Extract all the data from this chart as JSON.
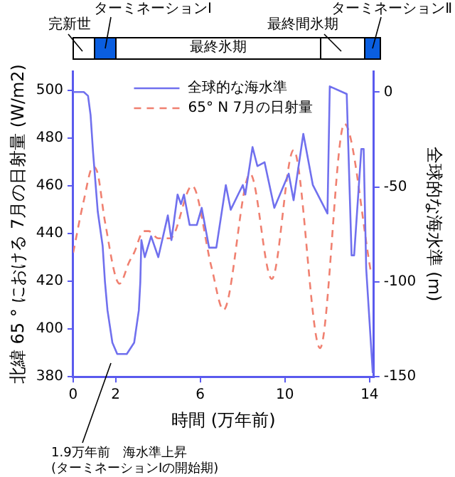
{
  "chart_data": {
    "type": "line",
    "xlabel": "時間 (万年前)",
    "ylabel": "北緯 65 ° における 7月の日射量 (W/m2)",
    "y2label": "全球的な海水準 (m)",
    "xlim": [
      0,
      14.2
    ],
    "xticks": [
      0,
      2,
      6,
      10,
      14
    ],
    "ylim": [
      380,
      508
    ],
    "yticks": [
      380,
      400,
      420,
      440,
      460,
      480,
      500
    ],
    "y2lim": [
      -150,
      11
    ],
    "y2ticks": [
      -150,
      -100,
      -50,
      0
    ],
    "legend": "top",
    "grid": false,
    "marker": "none",
    "series": [
      {
        "name": "全球的な海水準",
        "color": "#7070ee",
        "axis": "y2",
        "line_style": "solid",
        "x": [
          0,
          0.5,
          0.7,
          0.82,
          0.94,
          1.16,
          1.39,
          1.5,
          1.62,
          1.85,
          2.08,
          2.53,
          2.88,
          3.1,
          3.17,
          3.22,
          3.38,
          3.68,
          4.02,
          4.47,
          4.64,
          4.93,
          5.09,
          5.23,
          5.5,
          5.84,
          6.07,
          6.42,
          6.76,
          7.21,
          7.44,
          7.79,
          8.01,
          8.13,
          8.47,
          8.7,
          9.04,
          9.5,
          10.18,
          10.41,
          10.87,
          11.32,
          12.01,
          12.12,
          12.92,
          13.15,
          13.27,
          13.61,
          13.72,
          13.84,
          14.15
        ],
        "values": [
          0,
          0,
          -2,
          -12,
          -32,
          -63,
          -81,
          -100,
          -115,
          -132,
          -138,
          -138,
          -132,
          -115,
          -100,
          -78,
          -87,
          -76,
          -87,
          -65,
          -78,
          -54,
          -59,
          -54,
          -70,
          -70,
          -61,
          -82,
          -82,
          -49,
          -62,
          -54,
          -49,
          -54,
          -29,
          -39,
          -37,
          -61,
          -43,
          -57,
          -22,
          -49,
          -64,
          3,
          -1,
          -86,
          -86,
          -30,
          -30,
          -93,
          -148
        ]
      },
      {
        "name": "65° N 7月の日射量",
        "color": "#f08070",
        "line_style": "dashed",
        "x": [
          0,
          0.48,
          0.94,
          1.16,
          1.5,
          2.19,
          2.64,
          2.88,
          3.33,
          3.56,
          4.02,
          4.59,
          5.62,
          6.53,
          7.1,
          8.36,
          9.38,
          10.41,
          11.66,
          12.81,
          14.06
        ],
        "values": [
          432,
          453,
          468,
          465,
          445,
          419,
          428,
          432,
          441,
          441,
          438,
          438,
          460,
          426,
          408,
          465,
          421,
          475,
          392,
          486,
          424
        ]
      }
    ],
    "annotations": [
      "完新世",
      "ターミネーションⅠ",
      "最終氷期",
      "最終間氷期",
      "ターミネーションⅡ",
      "1.9万年前　海水準上昇\n(ターミネーションⅠの開始期)"
    ]
  }
}
